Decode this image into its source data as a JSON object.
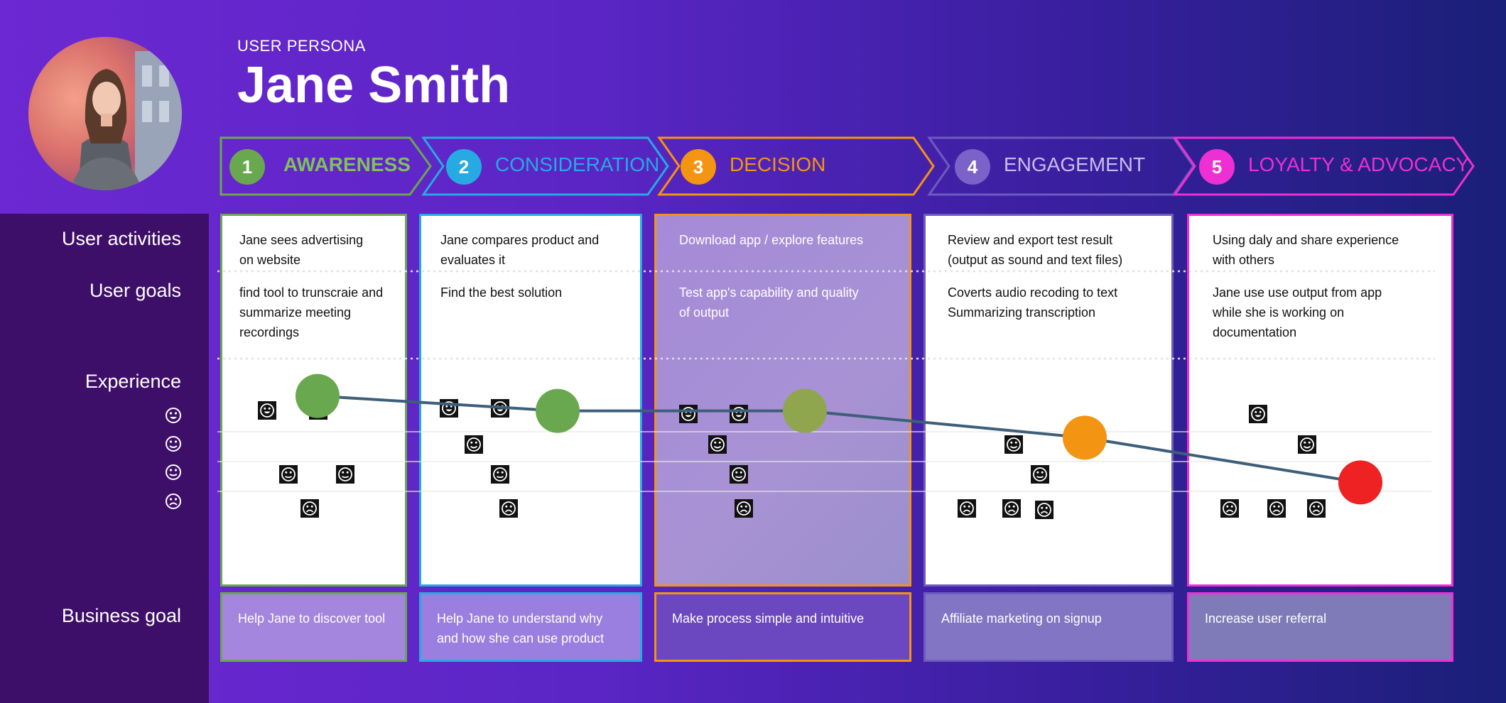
{
  "header": {
    "eyebrow": "USER PERSONA",
    "name": "Jane Smith"
  },
  "stages": [
    {
      "number": "1",
      "label": "AWARENESS",
      "color": "#6aa84f"
    },
    {
      "number": "2",
      "label": "CONSIDERATION",
      "color": "#27aae1"
    },
    {
      "number": "3",
      "label": "DECISION",
      "color": "#f39412"
    },
    {
      "number": "4",
      "label": "ENGAGEMENT",
      "color": "#7b62c9"
    },
    {
      "number": "5",
      "label": "LOYALTY & ADVOCACY",
      "color": "#ee2fd4"
    }
  ],
  "row_labels": {
    "activities": "User activities",
    "goals": "User goals",
    "experience": "Experience",
    "business": "Business goal"
  },
  "experience_scale_icons": [
    "very-happy-face-icon",
    "happy-face-icon",
    "neutral-face-icon",
    "sad-face-icon"
  ],
  "columns": [
    {
      "activity": "Jane sees advertising\non website",
      "goal": "find tool to  trunscraie and\nsummarize meeting\nrecordings",
      "business": "Help Jane to discover tool",
      "experience_level": 2.2
    },
    {
      "activity": "Jane compares product and\nevaluates it",
      "goal": "Find the best solution",
      "business": "Help Jane to understand why\nand how she can use product",
      "experience_level": 1.7
    },
    {
      "activity": "Download app / explore features",
      "goal": "Test app's capability and quality\nof output",
      "business": "Make process simple and intuitive",
      "experience_level": 1.7
    },
    {
      "activity": "Review and export test result\n(output as sound and text files)",
      "goal": "Coverts audio recoding to text\nSummarizing transcription",
      "business": "Affiliate marketing on signup",
      "experience_level": 0.8
    },
    {
      "activity": "Using daly and share experience\nwith others",
      "goal": "Jane use use output from app\nwhile she is working on\ndocumentation",
      "business": "Increase user referral",
      "experience_level": -0.7
    }
  ],
  "journey_point_colors": [
    "#6aa84f",
    "#6aa84f",
    "#8fa64f",
    "#f39412",
    "#ee2222"
  ]
}
